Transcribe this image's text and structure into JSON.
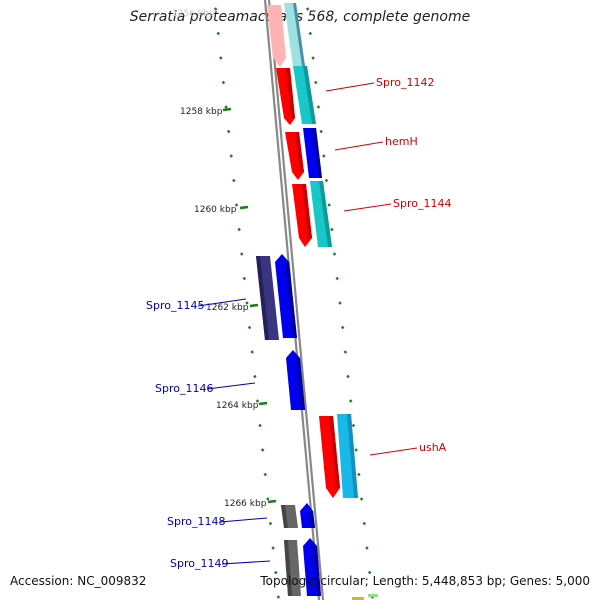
{
  "title": "Serratia proteamaculans 568, complete genome",
  "footer": {
    "accession": "Accession: NC_009832",
    "summary": "Topology: circular; Length: 5,448,853 bp; Genes: 5,000"
  },
  "scale_labels": [
    "1258 kbp",
    "1260 kbp",
    "1262 kbp",
    "1264 kbp",
    "1266 kbp"
  ],
  "gene_labels": {
    "spro_1142": "Spro_1142",
    "hemH": "hemH",
    "spro_1144": "Spro_1144",
    "spro_1145": "Spro_1145",
    "spro_1146": "Spro_1146",
    "ushA": "ushA",
    "spro_1148": "Spro_1148",
    "spro_1149": "Spro_1149"
  },
  "colors": {
    "forward_label": "#cc0000",
    "reverse_label": "#0000aa",
    "red": "#ff0000",
    "cyan": "#18c8c8",
    "blue": "#0000ee",
    "navy": "#3a3580",
    "gray": "#666666",
    "tick": "#1a7a1a",
    "backbone": "#888888"
  }
}
